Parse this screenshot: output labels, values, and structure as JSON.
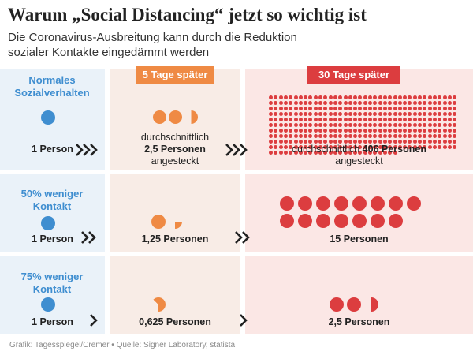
{
  "title": "Warum „Social Distancing“ jetzt so wichtig ist",
  "subtitle": "Die Coronavirus-Ausbreitung kann durch die Reduktion sozialer Kontakte eingedämmt werden",
  "columns": {
    "after5": "5 Tage später",
    "after30": "30 Tage später"
  },
  "rows": [
    {
      "label": "Normales Sozialverhalten",
      "start": "1 Person",
      "mid_prefix": "durchschnittlich",
      "mid_value": "2,5 Personen",
      "mid_suffix": "angesteckt",
      "end_prefix": "durchschnittlich",
      "end_value": "406 Personen",
      "end_suffix": "angesteckt",
      "mid_count": 2.5,
      "end_count": 406
    },
    {
      "label": "50% weniger Kontakt",
      "start": "1 Person",
      "mid_value": "1,25 Personen",
      "end_value": "15 Personen",
      "mid_count": 1.25,
      "end_count": 15
    },
    {
      "label": "75% weniger Kontakt",
      "start": "1 Person",
      "mid_value": "0,625 Personen",
      "end_value": "2,5 Personen",
      "mid_count": 0.625,
      "end_count": 2.5
    }
  ],
  "footer": "Grafik: Tagesspiegel/Cremer • Quelle: Signer Laboratory, statista",
  "colors": {
    "blue": "#3f8ed0",
    "orange": "#ef8a44",
    "red": "#dc3d3f"
  }
}
